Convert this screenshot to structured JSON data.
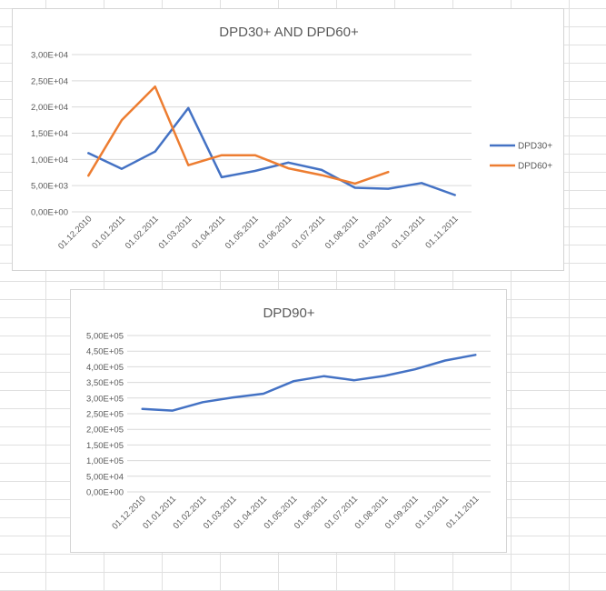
{
  "colors": {
    "series_blue": "#4472C4",
    "series_orange": "#ED7D31",
    "grid": "#d9d9d9",
    "text": "#595959"
  },
  "chart_data": [
    {
      "type": "line",
      "title": "DPD30+ AND DPD60+",
      "categories": [
        "01.12.2010",
        "01.01.2011",
        "01.02.2011",
        "01.03.2011",
        "01.04.2011",
        "01.05.2011",
        "01.06.2011",
        "01.07.2011",
        "01.08.2011",
        "01.09.2011",
        "01.10.2011",
        "01.11.2011"
      ],
      "yticks": [
        "0,00E+00",
        "5,00E+03",
        "1,00E+04",
        "1,50E+04",
        "2,00E+04",
        "2,50E+04",
        "3,00E+04"
      ],
      "ylim": [
        0,
        30000
      ],
      "legend_position": "right",
      "grid": true,
      "series": [
        {
          "name": "DPD30+",
          "color": "#4472C4",
          "values": [
            11200,
            8200,
            11500,
            19800,
            6600,
            7800,
            9400,
            8000,
            4600,
            4400,
            5500,
            3200
          ]
        },
        {
          "name": "DPD60+",
          "color": "#ED7D31",
          "values": [
            6900,
            17500,
            23900,
            8900,
            10800,
            10800,
            8300,
            7000,
            5400,
            7600,
            null,
            null
          ]
        }
      ]
    },
    {
      "type": "line",
      "title": "DPD90+",
      "categories": [
        "01.12.2010",
        "01.01.2011",
        "01.02.2011",
        "01.03.2011",
        "01.04.2011",
        "01.05.2011",
        "01.06.2011",
        "01.07.2011",
        "01.08.2011",
        "01.09.2011",
        "01.10.2011",
        "01.11.2011"
      ],
      "yticks": [
        "0,00E+00",
        "5,00E+04",
        "1,00E+05",
        "1,50E+05",
        "2,00E+05",
        "2,50E+05",
        "3,00E+05",
        "3,50E+05",
        "4,00E+05",
        "4,50E+05",
        "5,00E+05"
      ],
      "ylim": [
        0,
        500000
      ],
      "legend_position": "none",
      "grid": true,
      "series": [
        {
          "color": "#4472C4",
          "values": [
            265000,
            260000,
            287000,
            302000,
            314000,
            354000,
            370000,
            357000,
            371000,
            392000,
            420000,
            438000
          ]
        }
      ]
    }
  ]
}
